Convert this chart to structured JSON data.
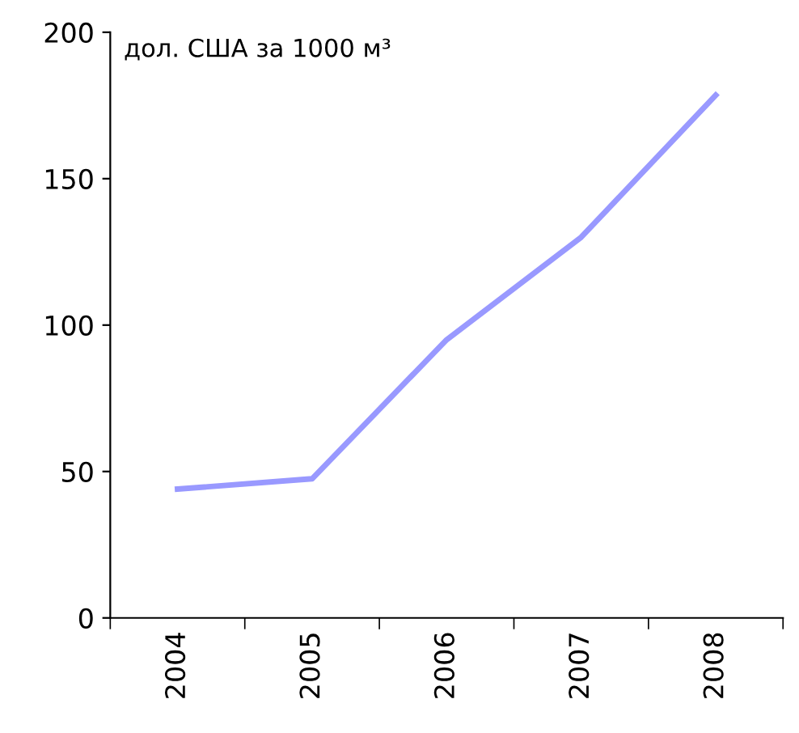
{
  "chart_data": {
    "type": "line",
    "ylabel": "дол. США за 1000 м³",
    "categories": [
      "2004",
      "2005",
      "2006",
      "2007",
      "2008"
    ],
    "series": [
      {
        "color": "#9999ff",
        "values": [
          44,
          47.5,
          95,
          130,
          178.5
        ]
      }
    ],
    "ylim": [
      0,
      200
    ],
    "yticks": [
      0,
      50,
      100,
      150,
      200
    ],
    "grid": false,
    "legend": false,
    "marker": "none",
    "line_style": "solid"
  }
}
